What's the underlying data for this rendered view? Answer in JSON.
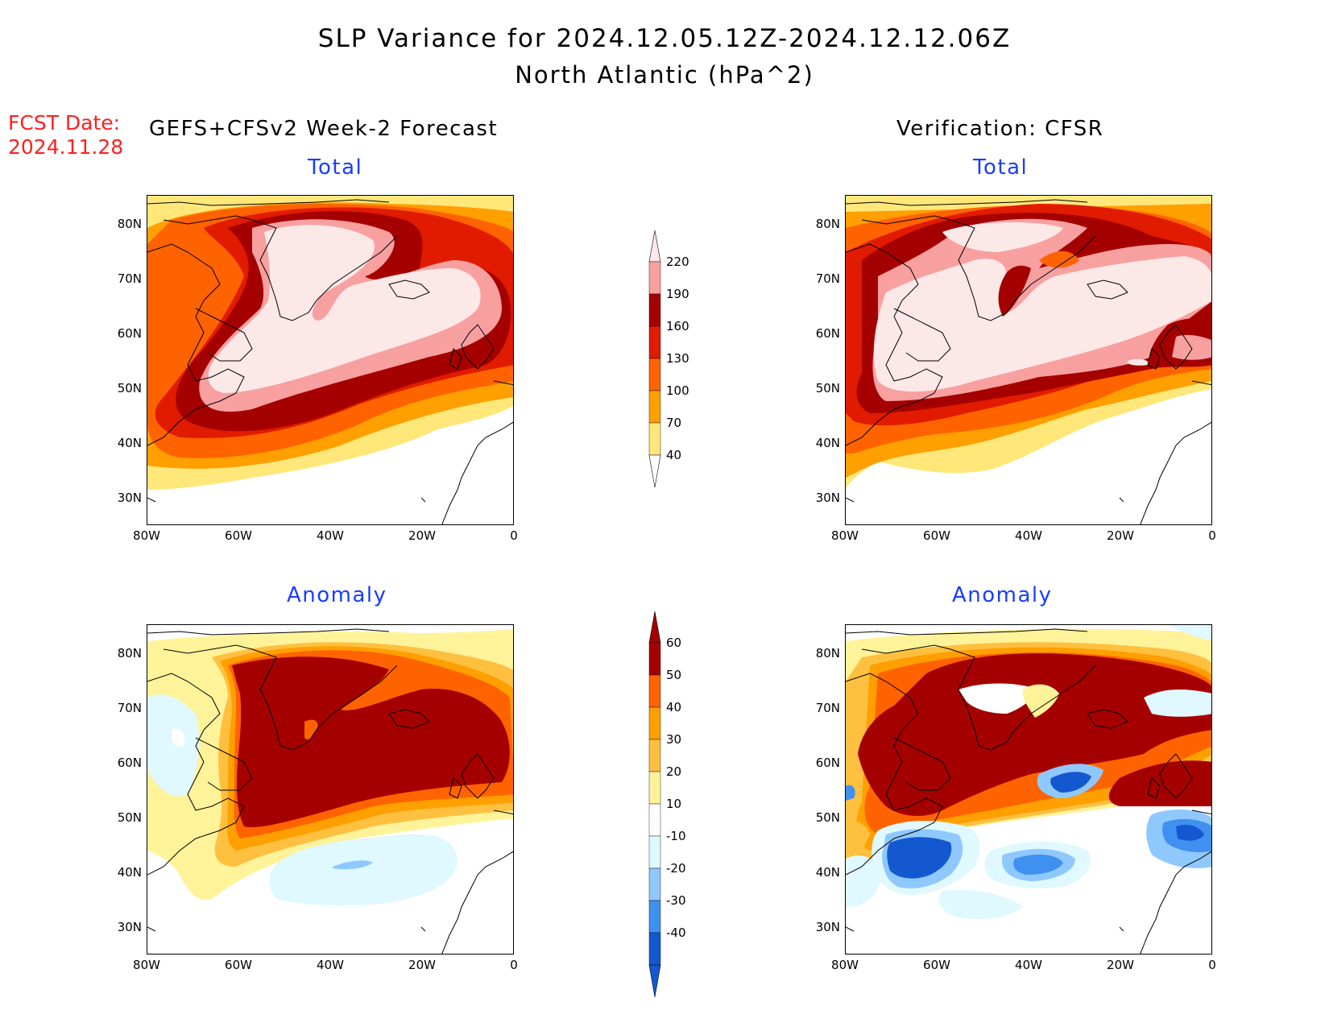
{
  "title_line1": "SLP Variance for 2024.12.05.12Z-2024.12.12.06Z",
  "title_line2": "North Atlantic (hPa^2)",
  "fcst_label": "FCST Date:",
  "fcst_date": "2024.11.28",
  "forecast_title": "GEFS+CFSv2 Week-2 Forecast",
  "verification_title": "Verification: CFSR",
  "panel_total": "Total",
  "panel_anomaly": "Anomaly",
  "lat_ticks": [
    "80N",
    "70N",
    "60N",
    "50N",
    "40N",
    "30N"
  ],
  "lon_ticks": [
    "80W",
    "60W",
    "40W",
    "20W",
    "0"
  ],
  "total_scale": {
    "levels": [
      "220",
      "190",
      "160",
      "130",
      "100",
      "70",
      "40"
    ],
    "colors": [
      "#f8a0a0",
      "#a50000",
      "#e11b00",
      "#ff6300",
      "#ff9f00",
      "#ffe77a"
    ],
    "top_color": "#fde8e8"
  },
  "anomaly_scale": {
    "levels": [
      "60",
      "50",
      "40",
      "30",
      "20",
      "10",
      "-10",
      "-20",
      "-30",
      "-40"
    ],
    "colors": [
      "#a50000",
      "#ff6300",
      "#ff9f00",
      "#ffc040",
      "#fff39a",
      "#ffffff",
      "#e0f8ff",
      "#8fc8ff",
      "#4090f0",
      "#1458d0"
    ],
    "top_color": "#a50000",
    "bottom_color": "#1458d0"
  }
}
